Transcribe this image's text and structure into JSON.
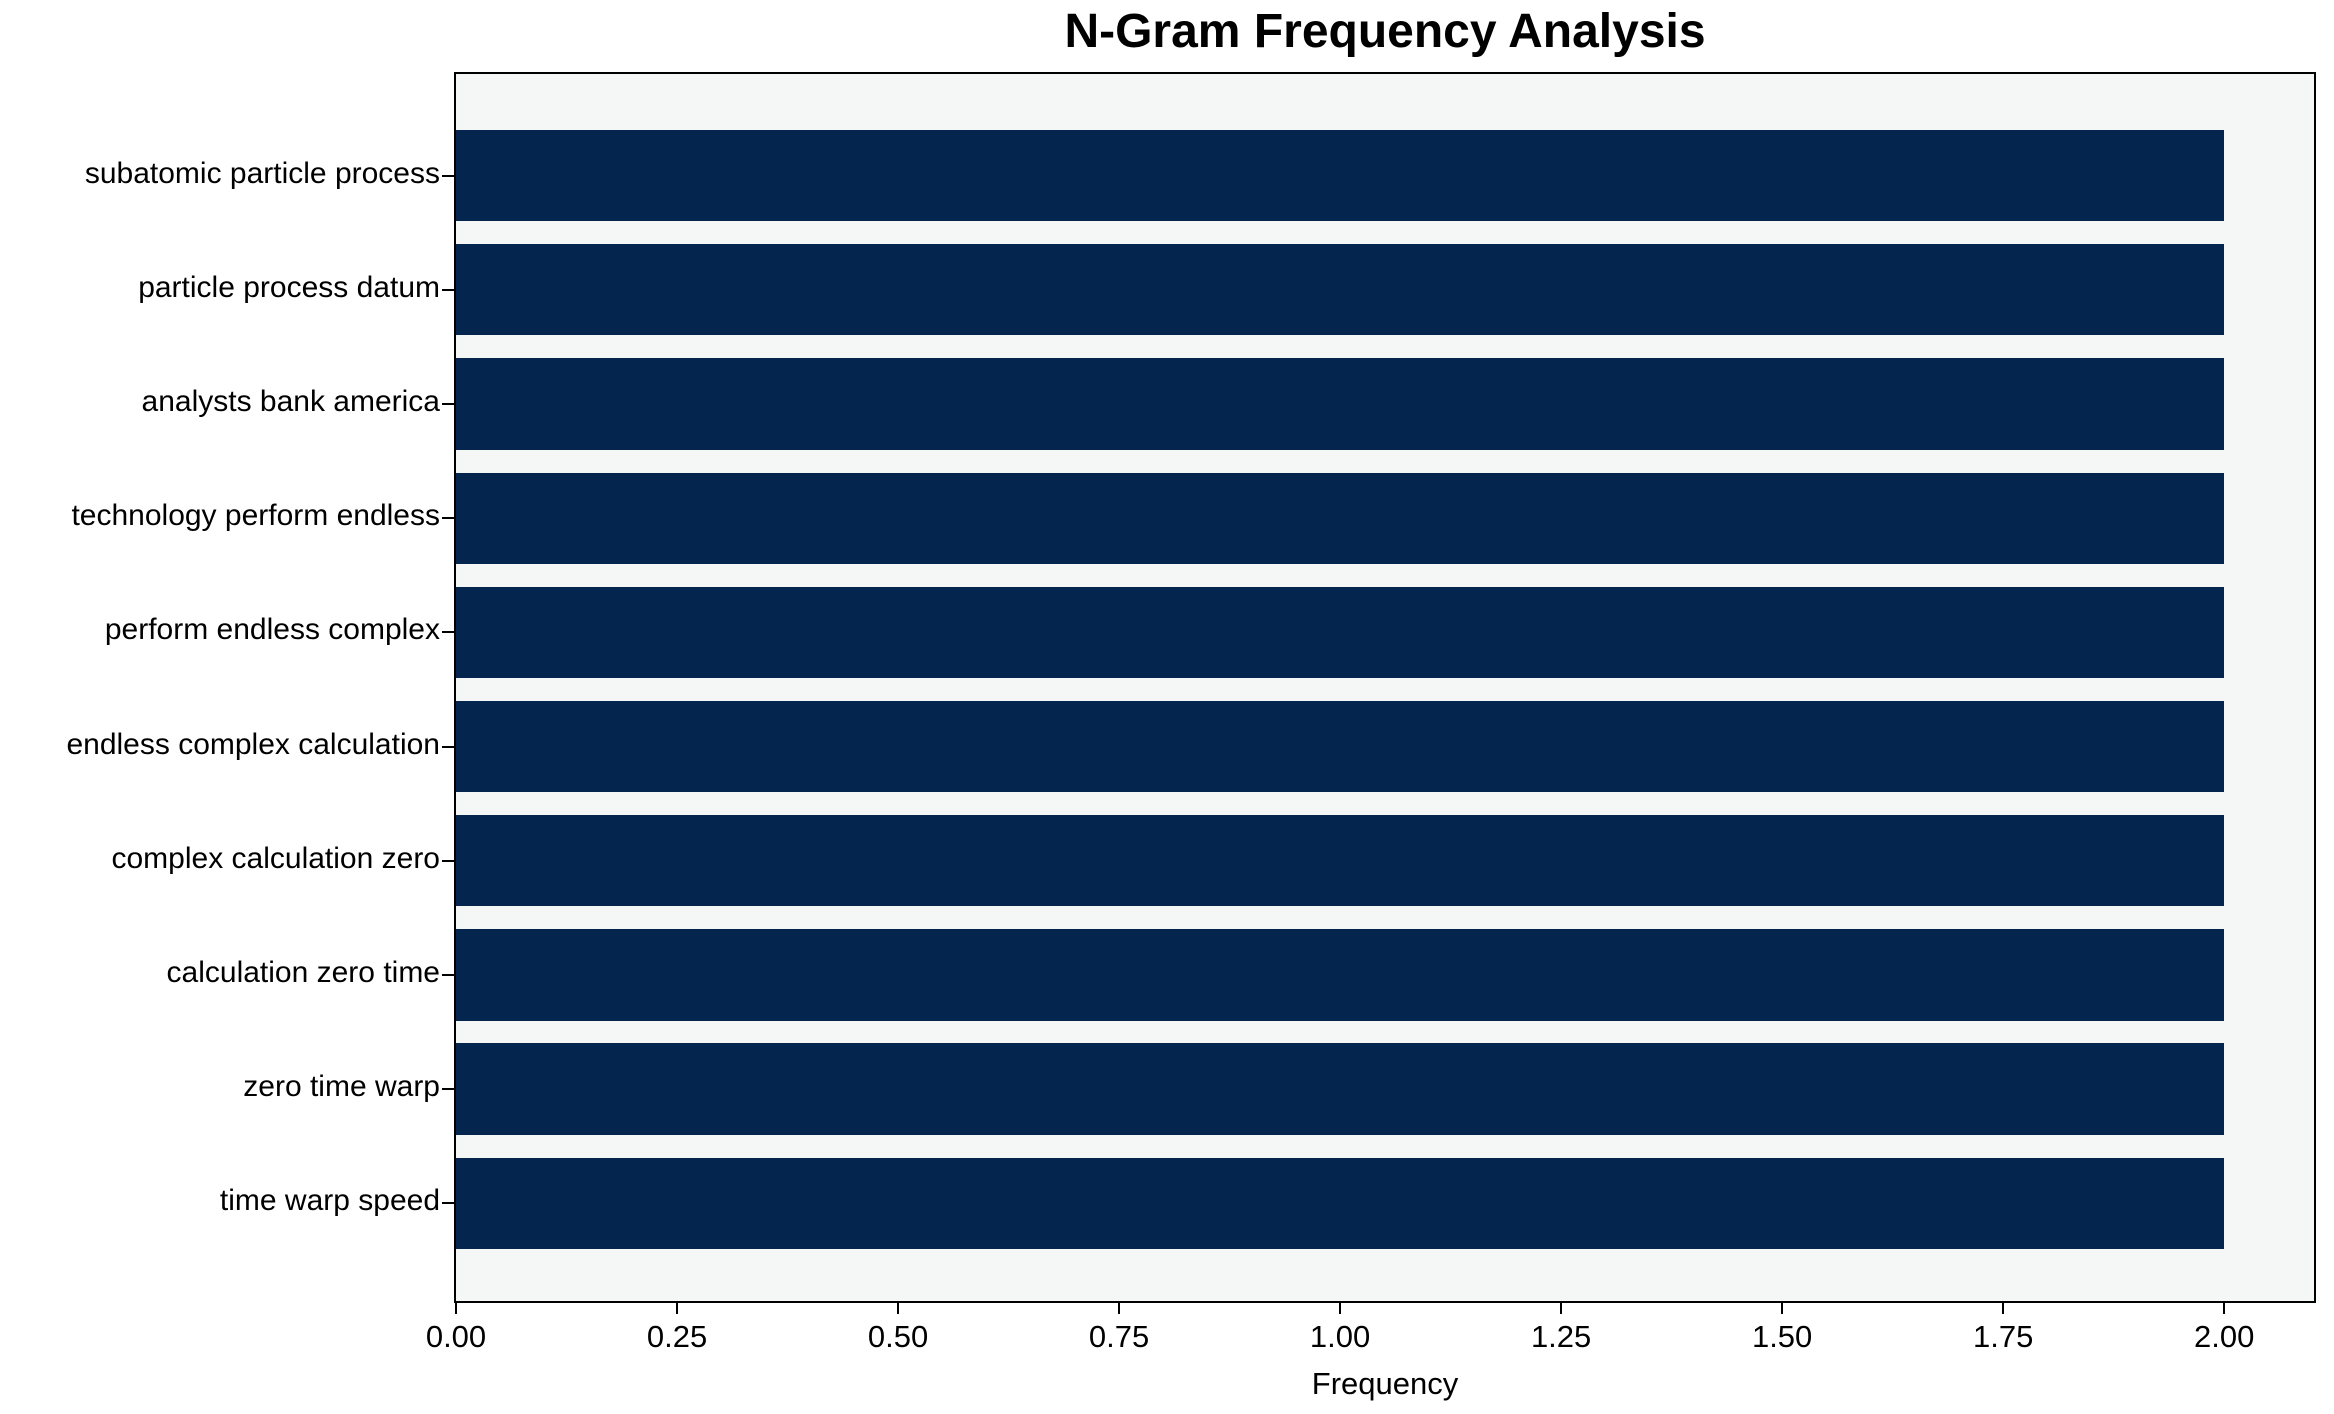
{
  "chart_data": {
    "type": "bar",
    "orientation": "horizontal",
    "title": "N-Gram Frequency Analysis",
    "xlabel": "Frequency",
    "ylabel": "",
    "categories": [
      "subatomic particle process",
      "particle process datum",
      "analysts bank america",
      "technology perform endless",
      "perform endless complex",
      "endless complex calculation",
      "complex calculation zero",
      "calculation zero time",
      "zero time warp",
      "time warp speed"
    ],
    "values": [
      2,
      2,
      2,
      2,
      2,
      2,
      2,
      2,
      2,
      2
    ],
    "xlim": [
      0,
      2.1016
    ],
    "xticks": [
      0,
      0.25,
      0.5,
      0.75,
      1.0,
      1.25,
      1.5,
      1.75,
      2.0
    ],
    "xtick_labels": [
      "0.00",
      "0.25",
      "0.50",
      "0.75",
      "1.00",
      "1.25",
      "1.50",
      "1.75",
      "2.00"
    ],
    "grid": false,
    "legend": "none",
    "colors": {
      "bar": "#03254e",
      "plot_background": "#f5f6f6",
      "figure_background": "#ffffff",
      "axis": "#000000",
      "text": "#000000"
    }
  }
}
